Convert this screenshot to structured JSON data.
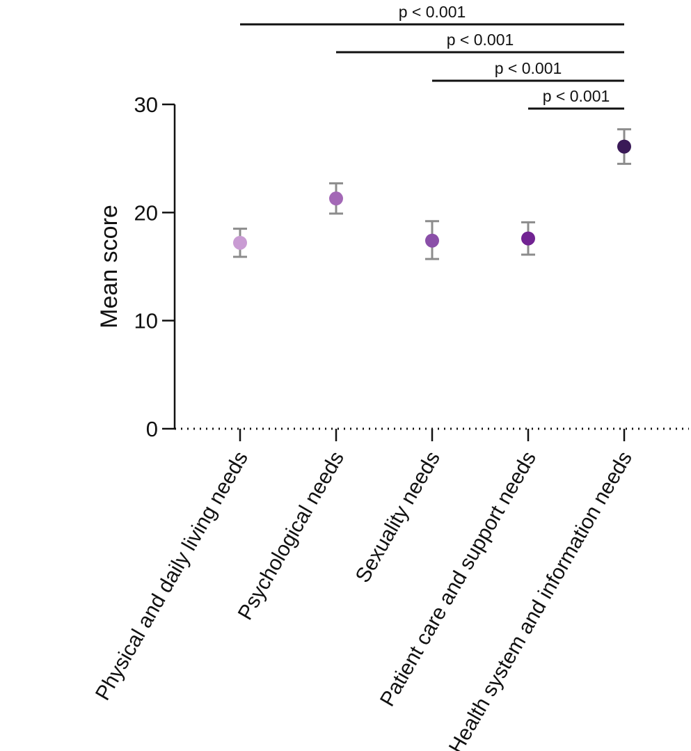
{
  "chart_data": {
    "type": "scatter",
    "title": "",
    "xlabel": "",
    "ylabel": "Mean score",
    "ylim": [
      0,
      30
    ],
    "yticks": [
      0,
      10,
      20,
      30
    ],
    "ytick_labels": [
      "0",
      "10",
      "20",
      "30"
    ],
    "grid": false,
    "legend": "none",
    "categories": [
      "Physical and daily living needs",
      "Psychological needs",
      "Sexuality needs",
      "Patient care and support needs",
      "Health system and information needs"
    ],
    "values": [
      17.2,
      21.3,
      17.4,
      17.6,
      26.1
    ],
    "error_low": [
      15.9,
      19.9,
      15.7,
      16.1,
      24.5
    ],
    "error_high": [
      18.5,
      22.7,
      19.2,
      19.1,
      27.7
    ],
    "point_colors": [
      "#c99bd3",
      "#a368b6",
      "#8a4fa8",
      "#712392",
      "#3a1a57"
    ],
    "error_bar_color": "#8c8c8c",
    "significance": [
      {
        "from": 0,
        "to": 4,
        "label": "p < 0.001"
      },
      {
        "from": 1,
        "to": 4,
        "label": "p < 0.001"
      },
      {
        "from": 2,
        "to": 4,
        "label": "p < 0.001"
      },
      {
        "from": 3,
        "to": 4,
        "label": "p < 0.001"
      }
    ]
  }
}
